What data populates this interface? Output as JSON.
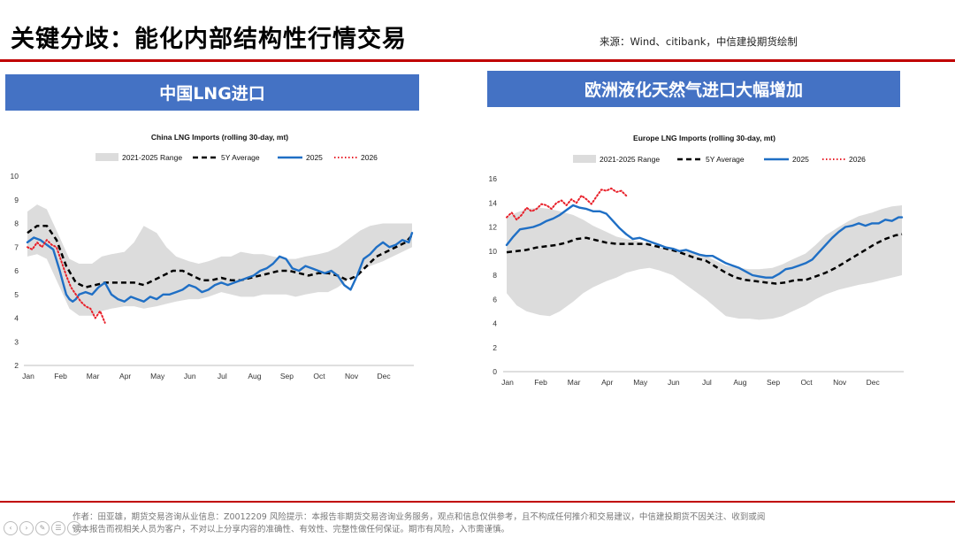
{
  "header": {
    "title": "关键分歧：能化内部结构性行情交易",
    "source": "来源：Wind、citibank，中信建投期货绘制"
  },
  "panels": [
    {
      "title": "中国LNG进口"
    },
    {
      "title": "欧洲液化天然气进口大幅增加"
    }
  ],
  "colors": {
    "accent_red": "#c00000",
    "panel_blue": "#4472c4",
    "range_fill": "#dcdcdc",
    "line_2025": "#1f6fc5",
    "line_2026": "#e8202a",
    "line_5y": "#000000"
  },
  "footer": {
    "line1": "作者：田亚雄，期货交易咨询从业信息：Z0012209    风险提示：本报告非期货交易咨询业务服务，观点和信息仅供参考，且不构成任何推介和交易建议，中信建投期货不因关注、收到或阅",
    "line2": "读本报告而视相关人员为客户，不对以上分享内容的准确性、有效性、完整性做任何保证。期市有风险，入市需谨慎。"
  },
  "nav_icons": [
    "prev-icon",
    "next-icon",
    "edit-icon",
    "menu-icon",
    "zoom-icon"
  ],
  "chart_data": [
    {
      "type": "line",
      "title": "China LNG Imports (rolling 30-day, mt)",
      "xlabel": "",
      "ylabel": "",
      "x_ticks": [
        "Jan",
        "Feb",
        "Mar",
        "Apr",
        "May",
        "Jun",
        "Jul",
        "Aug",
        "Sep",
        "Oct",
        "Nov",
        "Dec"
      ],
      "y_ticks": [
        2,
        3,
        4,
        5,
        6,
        7,
        8,
        9,
        10
      ],
      "ylim": [
        2,
        10
      ],
      "grid": false,
      "legend_position": "top",
      "legend": [
        "2021-2025 Range",
        "5Y Average",
        "2025",
        "2026"
      ],
      "range": {
        "name": "2021-2025 Range",
        "x": [
          0,
          0.3,
          0.6,
          1.0,
          1.3,
          1.6,
          2.0,
          2.3,
          2.6,
          3.0,
          3.3,
          3.6,
          4.0,
          4.3,
          4.6,
          5.0,
          5.3,
          5.6,
          6.0,
          6.3,
          6.6,
          7.0,
          7.3,
          7.6,
          8.0,
          8.3,
          8.6,
          9.0,
          9.3,
          9.6,
          10.0,
          10.3,
          10.6,
          11.0,
          11.3,
          11.6,
          11.9
        ],
        "low": [
          6.6,
          6.7,
          6.5,
          5.3,
          4.4,
          4.1,
          4.1,
          4.3,
          4.4,
          4.5,
          4.5,
          4.4,
          4.5,
          4.6,
          4.7,
          4.8,
          4.8,
          4.9,
          5.1,
          5.0,
          4.9,
          4.9,
          5.0,
          5.0,
          5.0,
          4.9,
          5.0,
          5.1,
          5.1,
          5.3,
          5.7,
          6.0,
          6.2,
          6.4,
          6.6,
          6.8,
          7.0
        ],
        "high": [
          8.5,
          8.8,
          8.6,
          7.4,
          6.5,
          6.3,
          6.3,
          6.6,
          6.7,
          6.8,
          7.2,
          7.9,
          7.6,
          7.0,
          6.6,
          6.4,
          6.3,
          6.4,
          6.6,
          6.6,
          6.8,
          6.7,
          6.7,
          6.6,
          6.5,
          6.5,
          6.6,
          6.7,
          6.8,
          7.0,
          7.4,
          7.7,
          7.9,
          8.0,
          8.0,
          8.0,
          8.0
        ]
      },
      "series": [
        {
          "name": "5Y Average",
          "style": "dashed",
          "x": [
            0,
            0.3,
            0.6,
            0.9,
            1.2,
            1.5,
            1.8,
            2.1,
            2.4,
            2.7,
            3.0,
            3.3,
            3.6,
            3.9,
            4.2,
            4.5,
            4.8,
            5.1,
            5.4,
            5.7,
            6.0,
            6.3,
            6.6,
            6.9,
            7.2,
            7.5,
            7.8,
            8.1,
            8.4,
            8.7,
            9.0,
            9.3,
            9.6,
            9.9,
            10.2,
            10.5,
            10.8,
            11.1,
            11.4,
            11.7,
            11.9
          ],
          "y": [
            7.6,
            7.9,
            7.9,
            7.3,
            6.2,
            5.5,
            5.3,
            5.4,
            5.5,
            5.5,
            5.5,
            5.5,
            5.4,
            5.6,
            5.8,
            6.0,
            6.0,
            5.8,
            5.6,
            5.6,
            5.7,
            5.6,
            5.6,
            5.7,
            5.8,
            5.9,
            6.0,
            6.0,
            5.9,
            5.8,
            5.9,
            5.9,
            5.8,
            5.6,
            5.8,
            6.2,
            6.6,
            6.8,
            7.0,
            7.2,
            7.5
          ]
        },
        {
          "name": "2025",
          "style": "solid",
          "x": [
            0,
            0.2,
            0.4,
            0.6,
            0.8,
            1.0,
            1.1,
            1.2,
            1.3,
            1.4,
            1.5,
            1.6,
            1.8,
            2.0,
            2.2,
            2.4,
            2.6,
            2.8,
            3.0,
            3.2,
            3.4,
            3.6,
            3.8,
            4.0,
            4.2,
            4.4,
            4.6,
            4.8,
            5.0,
            5.2,
            5.4,
            5.6,
            5.8,
            6.0,
            6.2,
            6.4,
            6.6,
            6.8,
            7.0,
            7.2,
            7.4,
            7.6,
            7.8,
            8.0,
            8.2,
            8.4,
            8.6,
            8.8,
            9.0,
            9.2,
            9.4,
            9.6,
            9.8,
            10.0,
            10.2,
            10.4,
            10.6,
            10.8,
            11.0,
            11.2,
            11.4,
            11.6,
            11.8,
            11.9
          ],
          "y": [
            7.2,
            7.4,
            7.3,
            7.1,
            6.9,
            6.0,
            5.5,
            5.0,
            4.8,
            4.7,
            4.8,
            5.0,
            5.1,
            5.0,
            5.3,
            5.5,
            5.0,
            4.8,
            4.7,
            4.9,
            4.8,
            4.7,
            4.9,
            4.8,
            5.0,
            5.0,
            5.1,
            5.2,
            5.4,
            5.3,
            5.1,
            5.2,
            5.4,
            5.5,
            5.4,
            5.5,
            5.6,
            5.7,
            5.8,
            6.0,
            6.1,
            6.3,
            6.6,
            6.5,
            6.1,
            6.0,
            6.2,
            6.1,
            6.0,
            5.9,
            6.0,
            5.8,
            5.4,
            5.2,
            5.8,
            6.5,
            6.7,
            7.0,
            7.2,
            7.0,
            7.1,
            7.3,
            7.2,
            7.6
          ]
        },
        {
          "name": "2026",
          "style": "dotted",
          "x": [
            0,
            0.15,
            0.3,
            0.45,
            0.6,
            0.75,
            0.9,
            1.05,
            1.2,
            1.35,
            1.5,
            1.65,
            1.8,
            1.95,
            2.1,
            2.25,
            2.4
          ],
          "y": [
            7.0,
            6.9,
            7.2,
            7.0,
            7.3,
            7.1,
            7.0,
            6.4,
            5.8,
            5.3,
            5.0,
            4.7,
            4.5,
            4.4,
            4.0,
            4.3,
            3.8
          ]
        }
      ]
    },
    {
      "type": "line",
      "title": "Europe LNG Imports (rolling 30-day, mt)",
      "xlabel": "",
      "ylabel": "",
      "x_ticks": [
        "Jan",
        "Feb",
        "Mar",
        "Apr",
        "May",
        "Jun",
        "Jul",
        "Aug",
        "Sep",
        "Oct",
        "Nov",
        "Dec"
      ],
      "y_ticks": [
        0,
        2,
        4,
        6,
        8,
        10,
        12,
        14,
        16
      ],
      "ylim": [
        0,
        16
      ],
      "grid": false,
      "legend_position": "top",
      "legend": [
        "2021-2025 Range",
        "5Y Average",
        "2025",
        "2026"
      ],
      "range": {
        "name": "2021-2025 Range",
        "x": [
          0,
          0.3,
          0.6,
          1.0,
          1.3,
          1.6,
          2.0,
          2.3,
          2.6,
          3.0,
          3.3,
          3.6,
          4.0,
          4.3,
          4.6,
          5.0,
          5.3,
          5.6,
          6.0,
          6.3,
          6.6,
          7.0,
          7.3,
          7.6,
          8.0,
          8.3,
          8.6,
          9.0,
          9.3,
          9.6,
          10.0,
          10.3,
          10.6,
          11.0,
          11.3,
          11.6,
          11.9
        ],
        "low": [
          6.5,
          5.5,
          5.0,
          4.7,
          4.6,
          5.0,
          5.8,
          6.5,
          7.0,
          7.5,
          7.8,
          8.2,
          8.5,
          8.6,
          8.4,
          8.0,
          7.4,
          6.8,
          6.0,
          5.3,
          4.6,
          4.4,
          4.4,
          4.3,
          4.4,
          4.6,
          5.0,
          5.5,
          6.0,
          6.4,
          6.8,
          7.0,
          7.2,
          7.4,
          7.6,
          7.8,
          8.0
        ],
        "high": [
          12.8,
          13.2,
          13.5,
          13.6,
          13.5,
          13.3,
          13.0,
          12.6,
          12.1,
          11.6,
          11.2,
          11.0,
          10.8,
          10.5,
          10.3,
          10.2,
          10.0,
          9.9,
          9.6,
          9.2,
          8.8,
          8.6,
          8.5,
          8.5,
          8.6,
          8.9,
          9.3,
          9.8,
          10.5,
          11.3,
          12.0,
          12.5,
          12.9,
          13.2,
          13.5,
          13.7,
          13.8
        ]
      },
      "series": [
        {
          "name": "5Y Average",
          "style": "dashed",
          "x": [
            0,
            0.3,
            0.6,
            0.9,
            1.2,
            1.5,
            1.8,
            2.1,
            2.4,
            2.7,
            3.0,
            3.3,
            3.6,
            3.9,
            4.2,
            4.5,
            4.8,
            5.1,
            5.4,
            5.7,
            6.0,
            6.3,
            6.6,
            6.9,
            7.2,
            7.5,
            7.8,
            8.1,
            8.4,
            8.7,
            9.0,
            9.3,
            9.6,
            9.9,
            10.2,
            10.5,
            10.8,
            11.1,
            11.4,
            11.7,
            11.9
          ],
          "y": [
            9.9,
            10.0,
            10.1,
            10.3,
            10.4,
            10.5,
            10.7,
            11.0,
            11.1,
            10.9,
            10.7,
            10.6,
            10.6,
            10.6,
            10.6,
            10.4,
            10.2,
            10.0,
            9.7,
            9.4,
            9.2,
            8.7,
            8.2,
            7.8,
            7.6,
            7.5,
            7.4,
            7.3,
            7.4,
            7.6,
            7.6,
            7.9,
            8.2,
            8.6,
            9.1,
            9.6,
            10.1,
            10.6,
            11.0,
            11.3,
            11.4
          ]
        },
        {
          "name": "2025",
          "style": "solid",
          "x": [
            0,
            0.2,
            0.4,
            0.6,
            0.8,
            1.0,
            1.2,
            1.4,
            1.6,
            1.8,
            2.0,
            2.2,
            2.4,
            2.6,
            2.8,
            3.0,
            3.2,
            3.4,
            3.6,
            3.8,
            4.0,
            4.2,
            4.4,
            4.6,
            4.8,
            5.0,
            5.2,
            5.4,
            5.6,
            5.8,
            6.0,
            6.2,
            6.4,
            6.6,
            6.8,
            7.0,
            7.2,
            7.4,
            7.6,
            7.8,
            8.0,
            8.2,
            8.4,
            8.6,
            8.8,
            9.0,
            9.2,
            9.4,
            9.6,
            9.8,
            10.0,
            10.2,
            10.4,
            10.6,
            10.8,
            11.0,
            11.2,
            11.4,
            11.6,
            11.8,
            11.9
          ],
          "y": [
            10.5,
            11.2,
            11.8,
            11.9,
            12.0,
            12.2,
            12.5,
            12.7,
            13.0,
            13.4,
            13.8,
            13.6,
            13.5,
            13.3,
            13.3,
            13.1,
            12.5,
            11.9,
            11.4,
            11.0,
            11.1,
            10.9,
            10.7,
            10.5,
            10.3,
            10.2,
            10.0,
            10.1,
            9.9,
            9.7,
            9.6,
            9.6,
            9.3,
            9.0,
            8.8,
            8.6,
            8.3,
            8.0,
            7.9,
            7.8,
            7.8,
            8.1,
            8.5,
            8.6,
            8.8,
            9.0,
            9.3,
            9.9,
            10.5,
            11.1,
            11.6,
            12.0,
            12.1,
            12.3,
            12.1,
            12.3,
            12.3,
            12.6,
            12.5,
            12.8,
            12.8
          ]
        },
        {
          "name": "2026",
          "style": "dotted",
          "x": [
            0,
            0.15,
            0.3,
            0.45,
            0.6,
            0.75,
            0.9,
            1.05,
            1.2,
            1.35,
            1.5,
            1.65,
            1.8,
            1.95,
            2.1,
            2.25,
            2.4,
            2.55,
            2.7,
            2.85,
            3.0,
            3.15,
            3.3,
            3.45,
            3.6
          ],
          "y": [
            12.8,
            13.2,
            12.6,
            13.0,
            13.6,
            13.3,
            13.5,
            13.9,
            13.8,
            13.5,
            14.0,
            14.2,
            13.8,
            14.3,
            14.0,
            14.6,
            14.3,
            13.9,
            14.5,
            15.1,
            15.0,
            15.2,
            14.9,
            15.0,
            14.6
          ]
        }
      ]
    }
  ]
}
